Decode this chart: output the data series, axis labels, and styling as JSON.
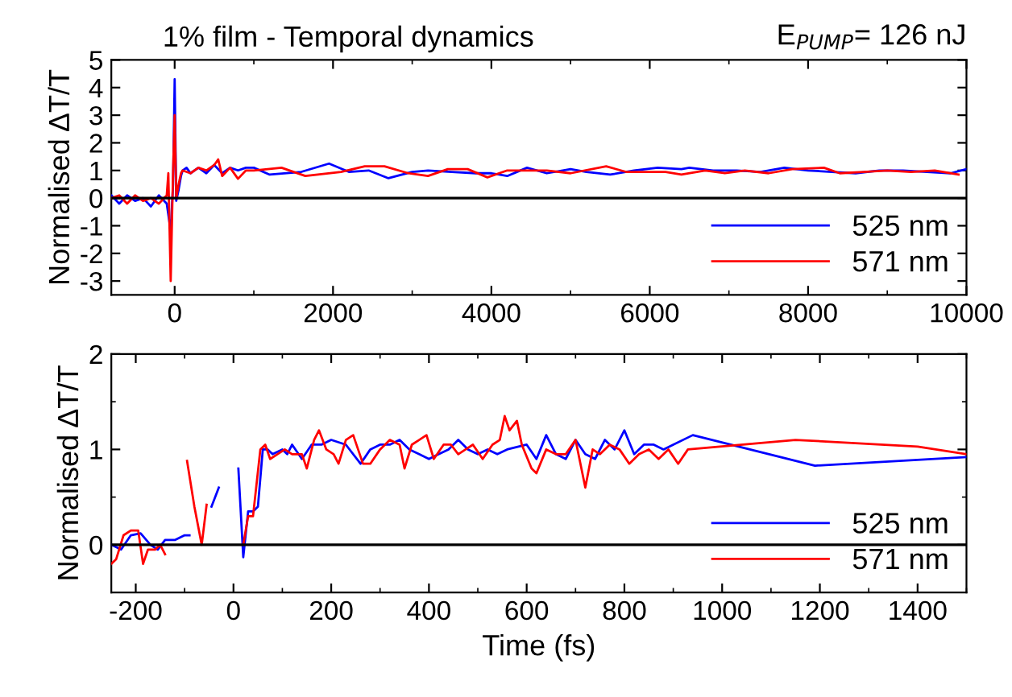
{
  "chart_data": [
    {
      "type": "line",
      "title": "1% film - Temporal dynamics",
      "annotations": [
        "E$_{PUMP}$= 126 nJ"
      ],
      "ylabel": "Normalised ΔT/T",
      "xlim": [
        -800,
        10000
      ],
      "xticks": [
        0,
        2000,
        4000,
        6000,
        8000,
        10000
      ],
      "ylim": [
        -3.5,
        5
      ],
      "yticks": [
        -3,
        -2,
        -1,
        0,
        1,
        2,
        3,
        4,
        5
      ],
      "ref_lines": [
        {
          "axis": "y",
          "value": 0,
          "color": "#000000"
        }
      ],
      "legend": "bottom right",
      "grid": false,
      "series": [
        {
          "name": "525 nm",
          "color": "#0000ff",
          "x": [
            -800,
            -700,
            -600,
            -500,
            -400,
            -300,
            -200,
            -100,
            -50,
            -20,
            0,
            20,
            50,
            80,
            100,
            150,
            200,
            300,
            400,
            500,
            600,
            700,
            800,
            900,
            1000,
            1200,
            1600,
            1950,
            2200,
            2450,
            2700,
            3000,
            3200,
            3500,
            3800,
            4000,
            4200,
            4450,
            4700,
            5000,
            5200,
            5500,
            5800,
            6100,
            6400,
            6500,
            6800,
            7100,
            7400,
            7700,
            8000,
            8300,
            8600,
            8900,
            9200,
            9500,
            9800,
            10000
          ],
          "values": [
            0.1,
            -0.2,
            0.1,
            -0.1,
            0.0,
            -0.3,
            0.1,
            -0.2,
            -1.2,
            0.5,
            4.3,
            -0.1,
            0.3,
            0.8,
            1.0,
            1.1,
            0.9,
            1.1,
            0.9,
            1.2,
            0.9,
            1.1,
            1.0,
            1.1,
            1.1,
            0.85,
            0.95,
            1.25,
            0.95,
            1.0,
            0.72,
            0.95,
            1.0,
            0.95,
            0.9,
            0.9,
            0.8,
            1.1,
            0.9,
            1.05,
            0.95,
            0.85,
            1.0,
            1.1,
            1.05,
            1.1,
            1.0,
            1.0,
            0.95,
            1.1,
            1.0,
            0.95,
            0.9,
            1.0,
            1.0,
            0.95,
            0.9,
            1.05
          ]
        },
        {
          "name": "571 nm",
          "color": "#ff0000",
          "x": [
            -800,
            -700,
            -600,
            -500,
            -400,
            -300,
            -200,
            -100,
            -80,
            -50,
            -20,
            0,
            20,
            50,
            80,
            100,
            200,
            300,
            400,
            500,
            550,
            600,
            700,
            800,
            900,
            1000,
            1350,
            1650,
            2100,
            2400,
            2650,
            2950,
            3200,
            3450,
            3700,
            3950,
            4200,
            4700,
            5000,
            5450,
            5700,
            6200,
            6400,
            6700,
            6950,
            7200,
            7500,
            7800,
            8200,
            8400,
            8700,
            9000,
            9300,
            9600,
            9900
          ],
          "values": [
            0.0,
            0.1,
            -0.2,
            0.1,
            -0.1,
            0.0,
            -0.2,
            0.1,
            0.9,
            -3.0,
            1.0,
            3.0,
            0.0,
            0.5,
            0.9,
            1.0,
            0.9,
            1.1,
            1.0,
            1.2,
            1.4,
            0.8,
            1.1,
            0.7,
            1.0,
            1.0,
            1.1,
            0.8,
            0.95,
            1.15,
            1.15,
            0.9,
            0.8,
            1.05,
            1.05,
            0.75,
            1.0,
            1.0,
            0.9,
            1.15,
            0.95,
            0.95,
            0.85,
            1.0,
            0.9,
            1.0,
            0.9,
            1.05,
            1.1,
            0.9,
            0.95,
            1.0,
            0.95,
            1.0,
            0.85
          ]
        }
      ]
    },
    {
      "type": "line",
      "xlabel": "Time (fs)",
      "ylabel": "Normalised ΔT/T",
      "xlim": [
        -250,
        1500
      ],
      "xticks": [
        -200,
        0,
        200,
        400,
        600,
        800,
        1000,
        1200,
        1400
      ],
      "ylim": [
        -0.5,
        2
      ],
      "yticks": [
        0,
        1,
        2
      ],
      "ref_lines": [
        {
          "axis": "y",
          "value": 0,
          "color": "#000000"
        }
      ],
      "legend": "bottom right",
      "grid": false,
      "series": [
        {
          "name": "525 nm",
          "color": "#0000ff",
          "x": [
            -250,
            -230,
            -210,
            -190,
            -170,
            -155,
            -140,
            -120,
            -100,
            -90,
            -70,
            -62,
            -55,
            -45,
            -30,
            -20,
            -10,
            5,
            10,
            20,
            30,
            40,
            50,
            60,
            70,
            80,
            100,
            110,
            120,
            140,
            160,
            180,
            200,
            230,
            260,
            280,
            300,
            320,
            340,
            360,
            380,
            400,
            420,
            440,
            460,
            480,
            500,
            520,
            540,
            560,
            600,
            620,
            640,
            660,
            680,
            700,
            720,
            740,
            760,
            780,
            800,
            820,
            840,
            860,
            880,
            900,
            940,
            1190,
            1500
          ],
          "values": [
            0.0,
            -0.05,
            0.1,
            0.12,
            0.0,
            -0.05,
            0.05,
            0.05,
            0.1,
            0.1,
            null,
            null,
            null,
            0.4,
            0.6,
            null,
            null,
            null,
            0.8,
            -0.13,
            0.35,
            0.35,
            0.4,
            1.0,
            1.0,
            0.95,
            1.0,
            0.95,
            1.05,
            0.9,
            1.05,
            1.05,
            1.1,
            1.05,
            0.85,
            1.0,
            1.05,
            1.05,
            1.1,
            1.0,
            0.95,
            0.9,
            0.95,
            1.0,
            1.1,
            1.0,
            0.95,
            1.0,
            0.95,
            1.0,
            1.05,
            0.9,
            1.15,
            0.95,
            0.9,
            1.1,
            0.95,
            0.9,
            1.1,
            1.0,
            1.2,
            0.95,
            1.05,
            1.05,
            1.0,
            1.05,
            1.15,
            0.83,
            0.92
          ]
        },
        {
          "name": "571 nm",
          "color": "#ff0000",
          "x": [
            -250,
            -240,
            -225,
            -210,
            -195,
            -185,
            -175,
            -160,
            -150,
            -140,
            -125,
            -115,
            -108,
            -95,
            -80,
            -65,
            -55,
            -50,
            -40,
            -30,
            -25,
            0,
            10,
            20,
            30,
            40,
            55,
            65,
            75,
            90,
            105,
            120,
            140,
            150,
            165,
            175,
            190,
            205,
            215,
            230,
            245,
            265,
            280,
            300,
            320,
            340,
            350,
            365,
            380,
            395,
            410,
            430,
            445,
            460,
            475,
            490,
            510,
            530,
            545,
            555,
            565,
            580,
            590,
            610,
            620,
            640,
            660,
            680,
            700,
            720,
            735,
            750,
            770,
            790,
            810,
            830,
            850,
            870,
            890,
            910,
            930,
            1150,
            1400,
            1500
          ],
          "values": [
            -0.2,
            -0.15,
            0.1,
            0.15,
            0.15,
            -0.2,
            -0.05,
            -0.05,
            0.0,
            -0.1,
            null,
            null,
            null,
            0.88,
            0.4,
            0.0,
            0.42,
            null,
            null,
            null,
            null,
            null,
            null,
            0.0,
            0.3,
            0.3,
            1.0,
            1.05,
            0.9,
            0.95,
            1.0,
            0.95,
            0.95,
            0.8,
            1.1,
            1.2,
            1.0,
            0.95,
            0.85,
            1.1,
            1.15,
            0.85,
            0.85,
            1.0,
            1.1,
            1.05,
            0.8,
            1.05,
            1.1,
            1.15,
            0.9,
            1.05,
            1.05,
            0.95,
            1.0,
            1.05,
            0.9,
            1.05,
            1.1,
            1.35,
            1.2,
            1.3,
            1.05,
            0.8,
            0.75,
            1.0,
            0.95,
            0.95,
            1.1,
            0.6,
            1.0,
            0.95,
            1.05,
            1.0,
            0.85,
            0.95,
            1.0,
            0.9,
            1.0,
            0.85,
            1.0,
            1.1,
            1.03,
            0.95
          ]
        }
      ]
    }
  ]
}
